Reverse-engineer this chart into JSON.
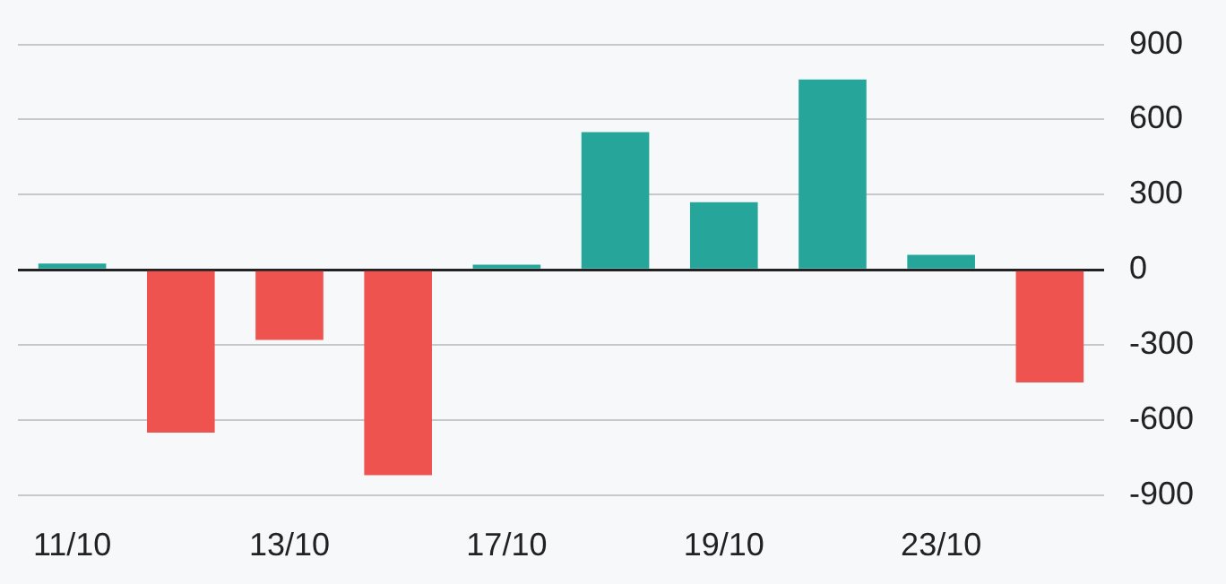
{
  "chart_data": {
    "type": "bar",
    "categories": [
      "11/10",
      null,
      "13/10",
      null,
      "17/10",
      null,
      "19/10",
      null,
      "23/10",
      null
    ],
    "values": [
      25,
      -650,
      -280,
      -820,
      20,
      550,
      270,
      760,
      60,
      -450
    ],
    "colors": [
      "#26a69a",
      "#ef5350",
      "#ef5350",
      "#ef5350",
      "#26a69a",
      "#26a69a",
      "#26a69a",
      "#26a69a",
      "#26a69a",
      "#ef5350"
    ],
    "ylim": [
      -900,
      900
    ],
    "yticks": [
      -900,
      -600,
      -300,
      0,
      300,
      600,
      900
    ],
    "grid": "y",
    "legend": false
  }
}
